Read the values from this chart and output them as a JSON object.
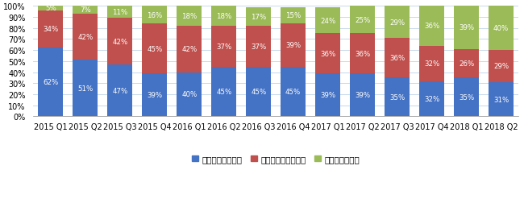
{
  "categories": [
    "2015 Q1",
    "2015 Q2",
    "2015 Q3",
    "2015 Q4",
    "2016 Q1",
    "2016 Q2",
    "2016 Q3",
    "2016 Q4",
    "2017 Q1",
    "2017 Q2",
    "2017 Q3",
    "2017 Q4",
    "2018 Q1",
    "2018 Q2"
  ],
  "web_browser": [
    62,
    51,
    47,
    39,
    40,
    45,
    45,
    45,
    39,
    39,
    35,
    32,
    35,
    31
  ],
  "mobile_browser": [
    34,
    42,
    42,
    45,
    42,
    37,
    37,
    39,
    36,
    36,
    36,
    32,
    26,
    29
  ],
  "mobile_app": [
    5,
    7,
    11,
    16,
    18,
    18,
    17,
    15,
    24,
    25,
    29,
    36,
    39,
    40
  ],
  "color_web": "#4472c4",
  "color_mob_br": "#c0504d",
  "color_mob_app": "#9bbb59",
  "legend_labels": [
    "ウェブブラウザー",
    "モバイルブラウザー",
    "モバイルアプリ"
  ],
  "ylabel_ticks": [
    "0%",
    "10%",
    "20%",
    "30%",
    "40%",
    "50%",
    "60%",
    "70%",
    "80%",
    "90%",
    "100%"
  ],
  "grid_color": "#c8d9ea",
  "background": "#ffffff",
  "tick_fontsize": 7.0,
  "legend_fontsize": 7.5,
  "bar_text_fontsize": 6.2
}
